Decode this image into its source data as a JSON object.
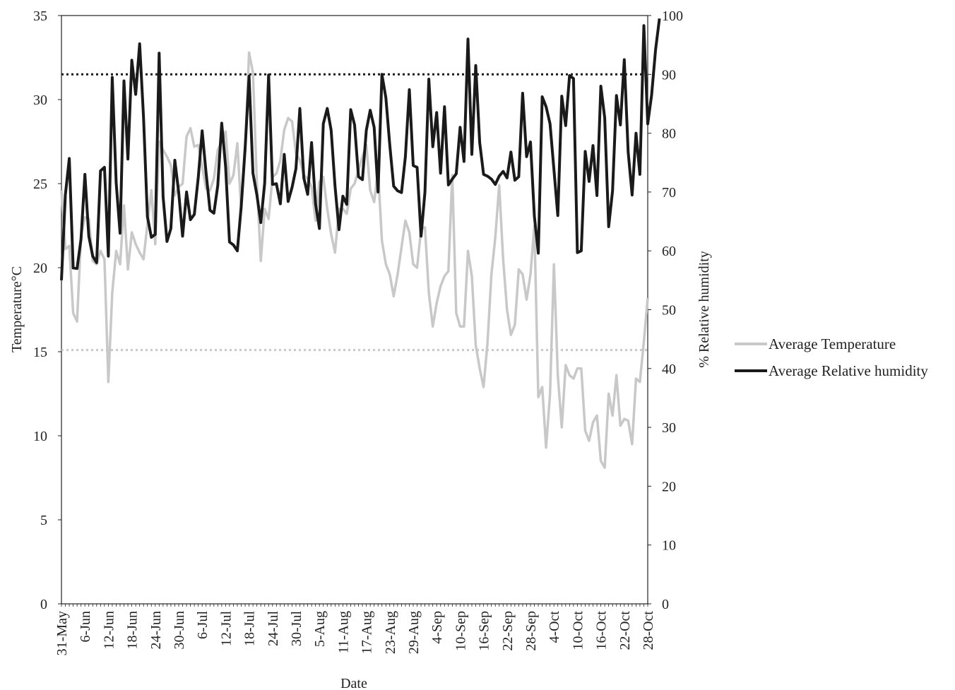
{
  "chart_data": {
    "type": "line",
    "title": "",
    "xlabel": "Date",
    "ylabel": "Temperature°C",
    "y2label": "% Relative humidity",
    "ylim": [
      0,
      35
    ],
    "y2lim": [
      0,
      100
    ],
    "yticks": [
      "0",
      "5",
      "10",
      "15",
      "20",
      "25",
      "30",
      "35"
    ],
    "y2ticks": [
      "0",
      "10",
      "20",
      "30",
      "40",
      "50",
      "60",
      "70",
      "80",
      "90",
      "100"
    ],
    "x_tick_labels": [
      "31-May",
      "6-Jun",
      "12-Jun",
      "18-Jun",
      "24-Jun",
      "30-Jun",
      "6-Jul",
      "12-Jul",
      "18-Jul",
      "24-Jul",
      "30-Jul",
      "5-Aug",
      "11-Aug",
      "17-Aug",
      "23-Aug",
      "29-Aug",
      "4-Sep",
      "10-Sep",
      "16-Sep",
      "22-Sep",
      "28-Sep",
      "4-Oct",
      "10-Oct",
      "16-Oct",
      "22-Oct",
      "28-Oct"
    ],
    "x_start": "2019-05-31",
    "grid": false,
    "legend_position": "right",
    "reference_lines": [
      {
        "axis": "y",
        "value": 15.1,
        "color": "#c8c8c8",
        "style": "dotted"
      },
      {
        "axis": "y2",
        "value": 90,
        "color": "#1a1a1a",
        "style": "dotted"
      }
    ],
    "series": [
      {
        "name": "Average Temperature",
        "axis": "y",
        "color": "#c8c8c8",
        "values": [
          24.6,
          21.1,
          21.3,
          17.3,
          16.8,
          21.9,
          23.0,
          22.9,
          20.4,
          20.2,
          21.0,
          20.5,
          13.2,
          18.5,
          21.0,
          20.2,
          23.7,
          19.9,
          22.1,
          21.4,
          20.9,
          20.5,
          22.6,
          24.6,
          21.4,
          27.5,
          27.0,
          26.6,
          26.1,
          24.3,
          24.8,
          25.0,
          27.8,
          28.3,
          27.2,
          27.3,
          26.0,
          24.7,
          24.6,
          25.3,
          27.0,
          27.5,
          28.1,
          25.0,
          25.5,
          27.4,
          23.4,
          27.0,
          32.8,
          31.6,
          25.0,
          20.4,
          23.5,
          22.9,
          25.4,
          25.6,
          26.4,
          28.2,
          28.9,
          28.7,
          26.8,
          26.4,
          25.5,
          25.3,
          24.8,
          22.8,
          25.1,
          25.4,
          23.5,
          22.0,
          20.9,
          23.5,
          23.5,
          23.2,
          24.7,
          25.0,
          25.8,
          26.6,
          27.3,
          24.6,
          23.9,
          25.8,
          21.6,
          20.2,
          19.6,
          18.3,
          19.6,
          21.2,
          22.8,
          22.1,
          20.2,
          20.0,
          22.3,
          22.4,
          18.5,
          16.5,
          17.9,
          18.9,
          19.5,
          19.8,
          25.5,
          17.3,
          16.5,
          16.5,
          21.0,
          19.5,
          15.4,
          14.0,
          12.9,
          15.5,
          19.6,
          21.8,
          24.9,
          20.5,
          17.5,
          16.0,
          16.6,
          19.9,
          19.6,
          18.1,
          19.6,
          22.5,
          12.3,
          12.9,
          9.3,
          12.5,
          20.2,
          13.6,
          10.5,
          14.2,
          13.6,
          13.4,
          14.0,
          14.0,
          10.3,
          9.7,
          10.8,
          11.2,
          8.5,
          8.1,
          12.5,
          11.2,
          13.6,
          10.6,
          11.0,
          10.9,
          9.5,
          13.4,
          13.2,
          15.6,
          18.2
        ]
      },
      {
        "name": "Average Relative humidity",
        "axis": "y2",
        "color": "#1a1a1a",
        "values": [
          55.0,
          69.5,
          75.7,
          57.1,
          57.0,
          62.0,
          73.0,
          62.5,
          59.1,
          58.0,
          73.6,
          74.2,
          59.1,
          89.5,
          71.5,
          63.0,
          88.9,
          75.6,
          92.4,
          86.6,
          95.2,
          82.7,
          65.8,
          62.3,
          62.8,
          93.6,
          69.2,
          61.6,
          63.8,
          75.4,
          69.9,
          62.5,
          70.0,
          65.3,
          66.2,
          72.5,
          80.4,
          73.3,
          66.9,
          66.4,
          71.1,
          81.7,
          74.3,
          61.5,
          61.0,
          60.0,
          67.6,
          77.6,
          89.7,
          73.2,
          69.5,
          64.8,
          71.5,
          89.9,
          71.3,
          71.4,
          68.0,
          76.4,
          68.4,
          70.8,
          74.0,
          84.2,
          72.4,
          69.6,
          78.4,
          68.0,
          63.8,
          81.6,
          84.2,
          80.5,
          71.0,
          63.6,
          69.3,
          67.9,
          84.0,
          81.4,
          72.6,
          72.1,
          80.5,
          83.9,
          81.0,
          70.0,
          90.0,
          86.0,
          78.0,
          71.0,
          70.2,
          69.9,
          76.0,
          87.4,
          74.5,
          74.2,
          62.5,
          70.0,
          89.2,
          77.7,
          83.5,
          73.2,
          84.5,
          71.2,
          72.2,
          73.1,
          81.0,
          75.2,
          96.0,
          76.4,
          91.5,
          78.4,
          73.0,
          72.7,
          72.2,
          71.3,
          72.7,
          73.5,
          72.4,
          76.8,
          72.0,
          72.6,
          86.8,
          76.0,
          78.5,
          65.9,
          59.6,
          86.2,
          84.5,
          81.6,
          73.8,
          66.0,
          86.3,
          81.3,
          89.8,
          89.3,
          59.7,
          60.0,
          76.9,
          71.8,
          77.9,
          69.4,
          88.0,
          82.6,
          64.1,
          70.2,
          86.4,
          81.4,
          92.5,
          76.8,
          69.5,
          80.0,
          73.0,
          98.3,
          81.6,
          86.5,
          94.2,
          99.5
        ]
      }
    ]
  }
}
